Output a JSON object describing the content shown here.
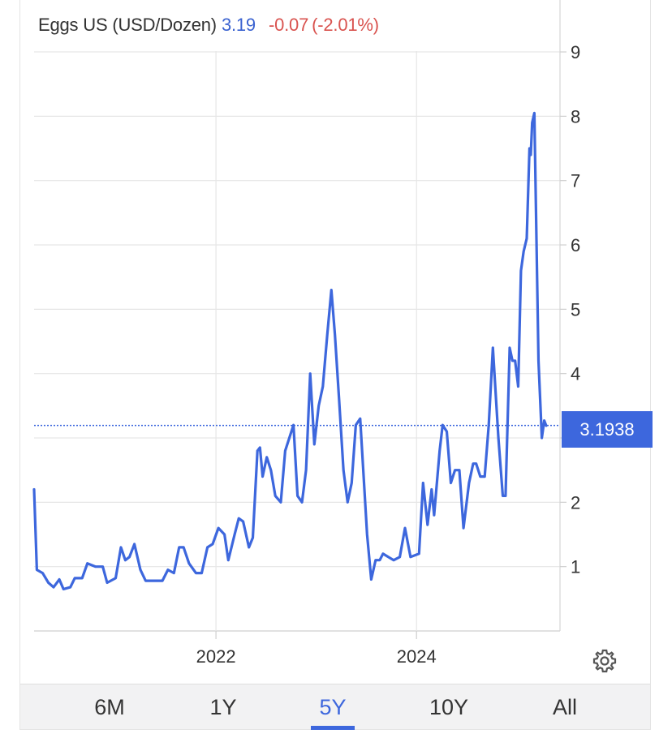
{
  "header": {
    "name": "Eggs US (USD/Dozen)",
    "last": "3.19",
    "change": "-0.07",
    "change_pct": "(-2.01%)"
  },
  "price_tag": "3.1938",
  "range_buttons": [
    {
      "label": "6M",
      "active": false
    },
    {
      "label": "1Y",
      "active": false
    },
    {
      "label": "5Y",
      "active": true
    },
    {
      "label": "10Y",
      "active": false
    },
    {
      "label": "All",
      "active": false
    }
  ],
  "colors": {
    "line": "#3d67dd",
    "positive": "#3a62d0",
    "negative": "#d9534f",
    "grid": "#e6e6e6"
  },
  "icons": {
    "settings": "gear-icon"
  },
  "chart_data": {
    "type": "line",
    "title": "Eggs US (USD/Dozen)",
    "x_axis": {
      "type": "date",
      "ticks": [
        "2022",
        "2024"
      ],
      "range": [
        "2020-03-01",
        "2025-04-30"
      ]
    },
    "y_axis": {
      "position": "right",
      "ticks": [
        1,
        2,
        3,
        4,
        5,
        6,
        7,
        8,
        9
      ],
      "range": [
        0,
        9
      ]
    },
    "grid": true,
    "current_value": 3.1938,
    "series": [
      {
        "values": [
          [
            "2020-03-10",
            2.2
          ],
          [
            "2020-03-20",
            0.95
          ],
          [
            "2020-04-10",
            0.9
          ],
          [
            "2020-05-01",
            0.75
          ],
          [
            "2020-05-20",
            0.68
          ],
          [
            "2020-06-10",
            0.8
          ],
          [
            "2020-06-25",
            0.65
          ],
          [
            "2020-07-20",
            0.68
          ],
          [
            "2020-08-05",
            0.82
          ],
          [
            "2020-09-01",
            0.82
          ],
          [
            "2020-09-20",
            1.05
          ],
          [
            "2020-10-20",
            1.0
          ],
          [
            "2020-11-15",
            1.0
          ],
          [
            "2020-12-01",
            0.75
          ],
          [
            "2021-01-01",
            0.82
          ],
          [
            "2021-01-20",
            1.3
          ],
          [
            "2021-02-05",
            1.1
          ],
          [
            "2021-02-20",
            1.15
          ],
          [
            "2021-03-10",
            1.35
          ],
          [
            "2021-04-01",
            0.95
          ],
          [
            "2021-04-20",
            0.78
          ],
          [
            "2021-06-01",
            0.78
          ],
          [
            "2021-06-20",
            0.78
          ],
          [
            "2021-07-10",
            0.95
          ],
          [
            "2021-08-01",
            0.9
          ],
          [
            "2021-08-20",
            1.3
          ],
          [
            "2021-09-05",
            1.3
          ],
          [
            "2021-09-25",
            1.05
          ],
          [
            "2021-10-20",
            0.9
          ],
          [
            "2021-11-10",
            0.9
          ],
          [
            "2021-12-01",
            1.3
          ],
          [
            "2021-12-20",
            1.35
          ],
          [
            "2022-01-10",
            1.6
          ],
          [
            "2022-02-01",
            1.5
          ],
          [
            "2022-02-15",
            1.1
          ],
          [
            "2022-03-10",
            1.5
          ],
          [
            "2022-03-25",
            1.75
          ],
          [
            "2022-04-10",
            1.7
          ],
          [
            "2022-05-01",
            1.3
          ],
          [
            "2022-05-15",
            1.45
          ],
          [
            "2022-06-01",
            2.8
          ],
          [
            "2022-06-10",
            2.85
          ],
          [
            "2022-06-20",
            2.4
          ],
          [
            "2022-07-05",
            2.7
          ],
          [
            "2022-07-20",
            2.5
          ],
          [
            "2022-08-05",
            2.1
          ],
          [
            "2022-08-25",
            2.0
          ],
          [
            "2022-09-10",
            2.8
          ],
          [
            "2022-09-25",
            3.0
          ],
          [
            "2022-10-10",
            3.2
          ],
          [
            "2022-10-25",
            2.1
          ],
          [
            "2022-11-10",
            2.0
          ],
          [
            "2022-11-25",
            2.5
          ],
          [
            "2022-12-10",
            4.0
          ],
          [
            "2022-12-25",
            2.9
          ],
          [
            "2023-01-10",
            3.5
          ],
          [
            "2023-01-25",
            3.8
          ],
          [
            "2023-02-10",
            4.6
          ],
          [
            "2023-02-25",
            5.3
          ],
          [
            "2023-03-10",
            4.6
          ],
          [
            "2023-03-25",
            3.6
          ],
          [
            "2023-04-10",
            2.5
          ],
          [
            "2023-04-25",
            2.0
          ],
          [
            "2023-05-10",
            2.3
          ],
          [
            "2023-05-25",
            3.2
          ],
          [
            "2023-06-10",
            3.3
          ],
          [
            "2023-07-05",
            1.5
          ],
          [
            "2023-07-20",
            0.8
          ],
          [
            "2023-08-05",
            1.1
          ],
          [
            "2023-08-20",
            1.1
          ],
          [
            "2023-09-01",
            1.2
          ],
          [
            "2023-09-20",
            1.15
          ],
          [
            "2023-10-10",
            1.1
          ],
          [
            "2023-11-01",
            1.15
          ],
          [
            "2023-11-20",
            1.6
          ],
          [
            "2023-12-10",
            1.15
          ],
          [
            "2024-01-10",
            1.2
          ],
          [
            "2024-01-25",
            2.3
          ],
          [
            "2024-02-10",
            1.65
          ],
          [
            "2024-02-25",
            2.2
          ],
          [
            "2024-03-05",
            1.8
          ],
          [
            "2024-03-25",
            2.8
          ],
          [
            "2024-04-05",
            3.2
          ],
          [
            "2024-04-20",
            3.1
          ],
          [
            "2024-05-05",
            2.3
          ],
          [
            "2024-05-20",
            2.5
          ],
          [
            "2024-06-05",
            2.5
          ],
          [
            "2024-06-20",
            1.6
          ],
          [
            "2024-07-10",
            2.3
          ],
          [
            "2024-07-25",
            2.6
          ],
          [
            "2024-08-05",
            2.6
          ],
          [
            "2024-08-20",
            2.4
          ],
          [
            "2024-09-05",
            2.4
          ],
          [
            "2024-09-20",
            3.2
          ],
          [
            "2024-10-05",
            4.4
          ],
          [
            "2024-10-25",
            3.0
          ],
          [
            "2024-11-10",
            2.1
          ],
          [
            "2024-11-20",
            2.1
          ],
          [
            "2024-12-05",
            4.4
          ],
          [
            "2024-12-15",
            4.2
          ],
          [
            "2024-12-25",
            4.2
          ],
          [
            "2025-01-05",
            3.8
          ],
          [
            "2025-01-15",
            5.6
          ],
          [
            "2025-01-25",
            5.9
          ],
          [
            "2025-02-05",
            6.1
          ],
          [
            "2025-02-15",
            7.5
          ],
          [
            "2025-02-20",
            7.4
          ],
          [
            "2025-02-25",
            7.9
          ],
          [
            "2025-03-05",
            8.05
          ],
          [
            "2025-03-20",
            4.2
          ],
          [
            "2025-04-01",
            3.0
          ],
          [
            "2025-04-10",
            3.27
          ],
          [
            "2025-04-17",
            3.19
          ]
        ]
      }
    ]
  }
}
